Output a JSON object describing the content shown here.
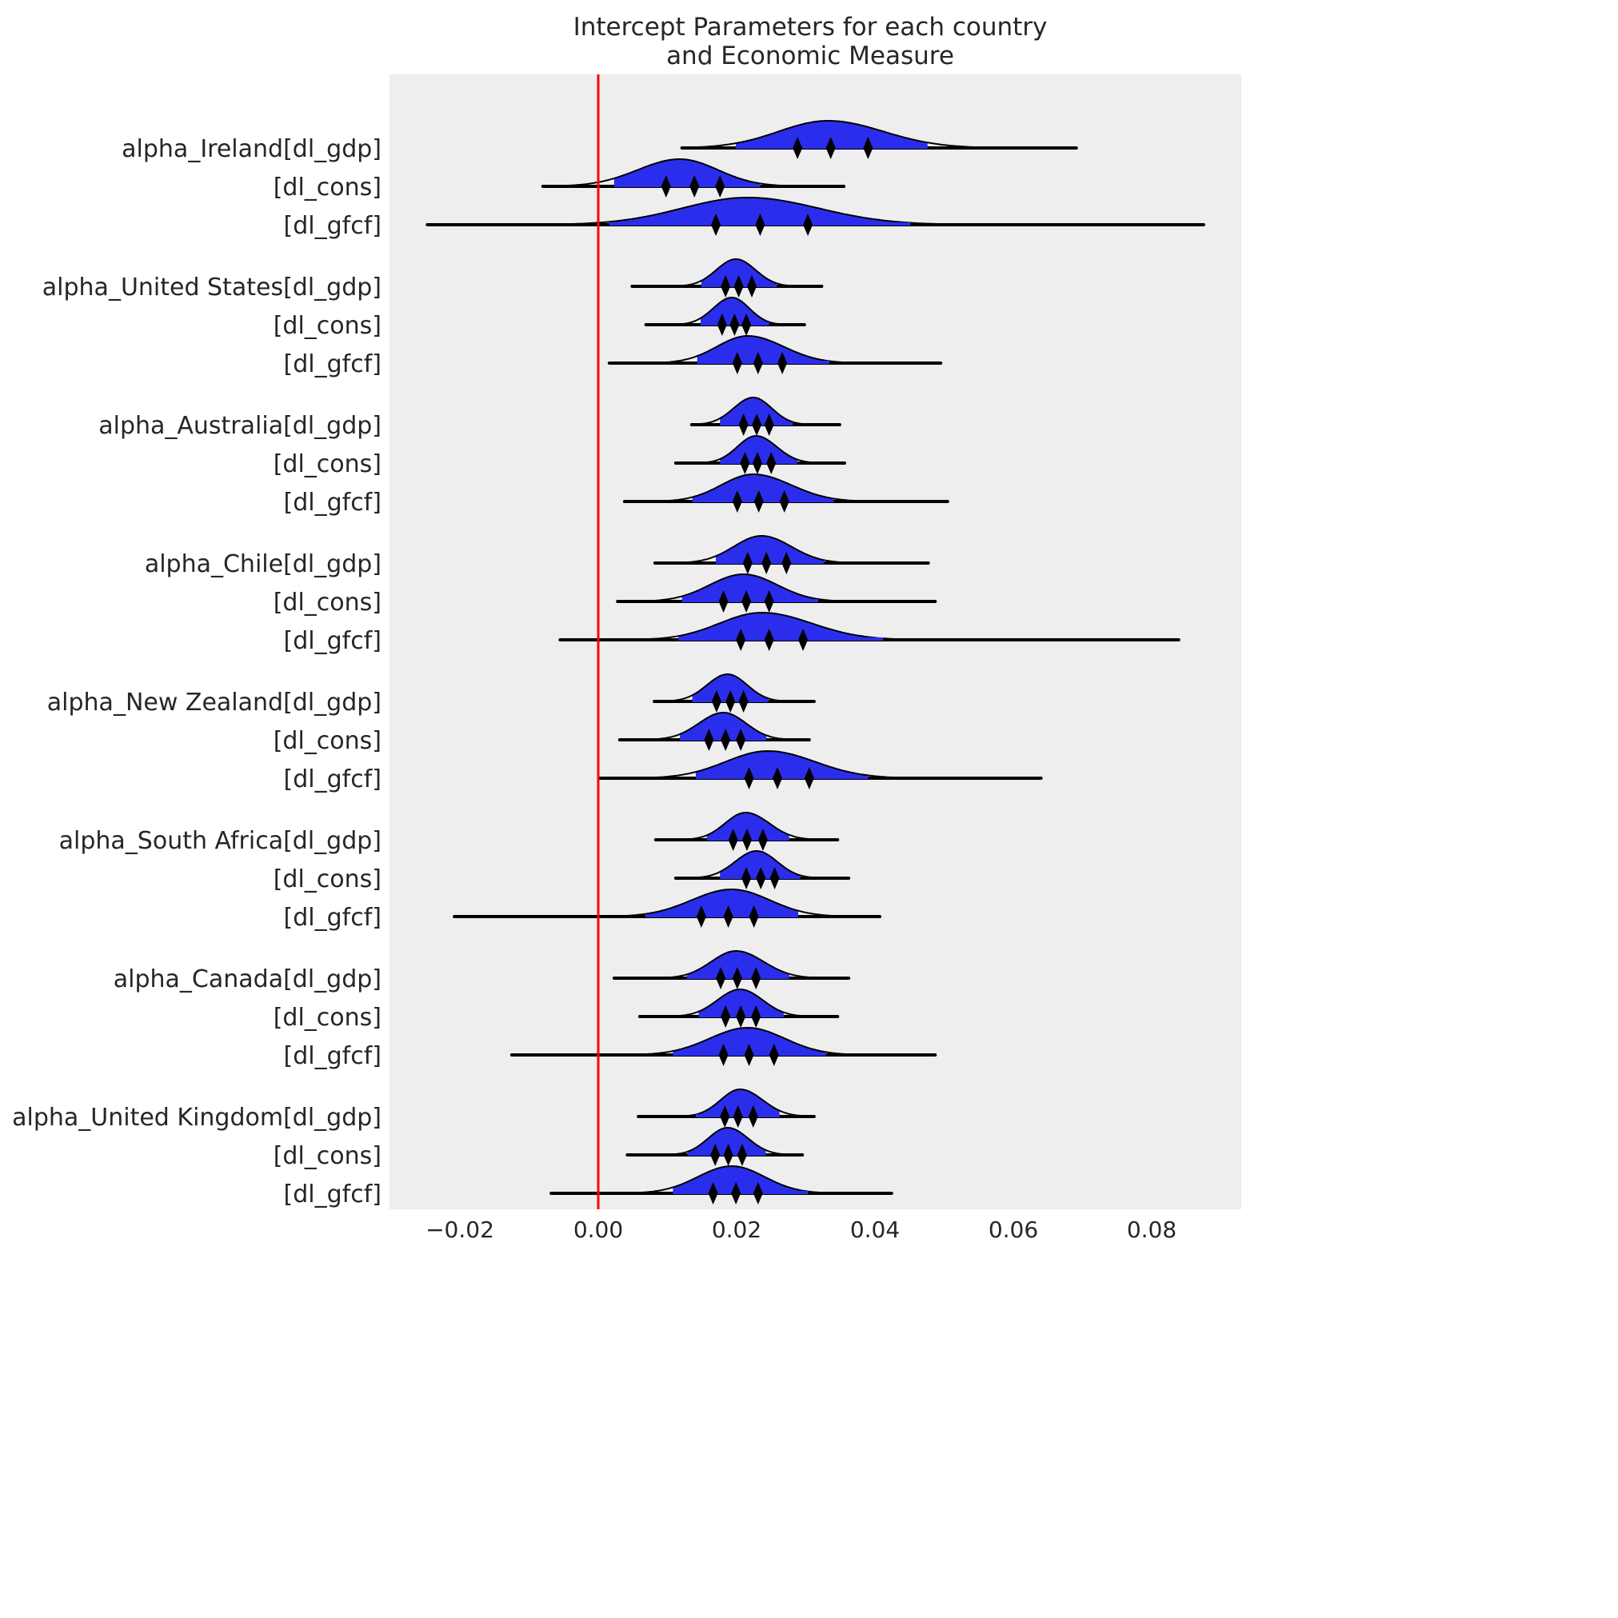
{
  "chart_data": {
    "type": "ridgeline",
    "title": "Intercept Parameters for each country\nand Economic Measure",
    "title_lines": [
      "Intercept Parameters for each country",
      "and Economic Measure"
    ],
    "xlim": [
      -0.031,
      0.092
    ],
    "xticks": [
      -0.02,
      0.0,
      0.02,
      0.04,
      0.06,
      0.08
    ],
    "xtick_labels": [
      "−0.02",
      "0.00",
      "0.02",
      "0.04",
      "0.06",
      "0.08"
    ],
    "reference_line": {
      "x": 0.0,
      "color": "#ff0000"
    },
    "grid": false,
    "colors": {
      "fill": "#2a2eec",
      "outline": "#000000",
      "background": "#eeeeee"
    },
    "rows": [
      {
        "label": "alpha_Ireland[dl_gdp]",
        "min": 0.0121,
        "max": 0.0691,
        "hdi": [
          0.0199,
          0.0476
        ],
        "quartiles": [
          0.0288,
          0.0336,
          0.039
        ],
        "mode": 0.0332
      },
      {
        "label": "[dl_cons]",
        "min": -0.008,
        "max": 0.0355,
        "hdi": [
          0.0023,
          0.0234
        ],
        "quartiles": [
          0.0098,
          0.0139,
          0.0176
        ],
        "mode": 0.0118
      },
      {
        "label": "[dl_gfcf]",
        "min": -0.0247,
        "max": 0.0875,
        "hdi": [
          0.0016,
          0.0451
        ],
        "quartiles": [
          0.017,
          0.0234,
          0.0303
        ],
        "mode": 0.0216
      },
      {
        "label": "alpha_United States[dl_gdp]",
        "min": 0.0049,
        "max": 0.0323,
        "hdi": [
          0.0149,
          0.0258
        ],
        "quartiles": [
          0.0184,
          0.0203,
          0.0222
        ],
        "mode": 0.0199
      },
      {
        "label": "[dl_cons]",
        "min": 0.0069,
        "max": 0.0298,
        "hdi": [
          0.0148,
          0.0247
        ],
        "quartiles": [
          0.0179,
          0.0197,
          0.0214
        ],
        "mode": 0.0193
      },
      {
        "label": "[dl_gfcf]",
        "min": 0.0016,
        "max": 0.0495,
        "hdi": [
          0.0143,
          0.0334
        ],
        "quartiles": [
          0.0201,
          0.0231,
          0.0266
        ],
        "mode": 0.0216
      },
      {
        "label": "alpha_Australia[dl_gdp]",
        "min": 0.0135,
        "max": 0.0349,
        "hdi": [
          0.0176,
          0.0281
        ],
        "quartiles": [
          0.021,
          0.0229,
          0.0247
        ],
        "mode": 0.0224
      },
      {
        "label": "[dl_cons]",
        "min": 0.0112,
        "max": 0.0356,
        "hdi": [
          0.0176,
          0.0288
        ],
        "quartiles": [
          0.0212,
          0.023,
          0.025
        ],
        "mode": 0.0228
      },
      {
        "label": "[dl_gfcf]",
        "min": 0.0038,
        "max": 0.0505,
        "hdi": [
          0.0136,
          0.034
        ],
        "quartiles": [
          0.0201,
          0.0232,
          0.0269
        ],
        "mode": 0.0224
      },
      {
        "label": "alpha_Chile[dl_gdp]",
        "min": 0.0082,
        "max": 0.0477,
        "hdi": [
          0.017,
          0.0326
        ],
        "quartiles": [
          0.0216,
          0.0243,
          0.0272
        ],
        "mode": 0.0236
      },
      {
        "label": "[dl_cons]",
        "min": 0.0028,
        "max": 0.0487,
        "hdi": [
          0.0121,
          0.0318
        ],
        "quartiles": [
          0.0181,
          0.0214,
          0.0247
        ],
        "mode": 0.021
      },
      {
        "label": "[dl_gfcf]",
        "min": -0.0055,
        "max": 0.0839,
        "hdi": [
          0.0116,
          0.0412
        ],
        "quartiles": [
          0.0206,
          0.0247,
          0.0296
        ],
        "mode": 0.0236
      },
      {
        "label": "alpha_New Zealand[dl_gdp]",
        "min": 0.0081,
        "max": 0.0312,
        "hdi": [
          0.0136,
          0.0246
        ],
        "quartiles": [
          0.0171,
          0.0191,
          0.021
        ],
        "mode": 0.0187
      },
      {
        "label": "[dl_cons]",
        "min": 0.0031,
        "max": 0.0305,
        "hdi": [
          0.0118,
          0.0243
        ],
        "quartiles": [
          0.016,
          0.0184,
          0.0206
        ],
        "mode": 0.0181
      },
      {
        "label": "[dl_gfcf]",
        "min": 0.0002,
        "max": 0.064,
        "hdi": [
          0.0141,
          0.039
        ],
        "quartiles": [
          0.0218,
          0.0259,
          0.0305
        ],
        "mode": 0.0245
      },
      {
        "label": "alpha_South Africa[dl_gdp]",
        "min": 0.0083,
        "max": 0.0346,
        "hdi": [
          0.0157,
          0.0276
        ],
        "quartiles": [
          0.0195,
          0.0215,
          0.0238
        ],
        "mode": 0.0213
      },
      {
        "label": "[dl_cons]",
        "min": 0.0112,
        "max": 0.0362,
        "hdi": [
          0.0176,
          0.0292
        ],
        "quartiles": [
          0.0214,
          0.0235,
          0.0255
        ],
        "mode": 0.0229
      },
      {
        "label": "[dl_gfcf]",
        "min": -0.0208,
        "max": 0.0407,
        "hdi": [
          0.0068,
          0.0289
        ],
        "quartiles": [
          0.0149,
          0.0188,
          0.0225
        ],
        "mode": 0.0193
      },
      {
        "label": "alpha_Canada[dl_gdp]",
        "min": 0.0023,
        "max": 0.0362,
        "hdi": [
          0.0128,
          0.0276
        ],
        "quartiles": [
          0.0177,
          0.0201,
          0.0228
        ],
        "mode": 0.0199
      },
      {
        "label": "[dl_cons]",
        "min": 0.006,
        "max": 0.0346,
        "hdi": [
          0.0145,
          0.0268
        ],
        "quartiles": [
          0.0184,
          0.0206,
          0.0228
        ],
        "mode": 0.0205
      },
      {
        "label": "[dl_gfcf]",
        "min": -0.0125,
        "max": 0.0487,
        "hdi": [
          0.0108,
          0.0329
        ],
        "quartiles": [
          0.0181,
          0.0218,
          0.0254
        ],
        "mode": 0.0216
      },
      {
        "label": "alpha_United Kingdom[dl_gdp]",
        "min": 0.0058,
        "max": 0.0312,
        "hdi": [
          0.0141,
          0.0262
        ],
        "quartiles": [
          0.0183,
          0.0202,
          0.0224
        ],
        "mode": 0.0205
      },
      {
        "label": "[dl_cons]",
        "min": 0.0042,
        "max": 0.0295,
        "hdi": [
          0.0129,
          0.0242
        ],
        "quartiles": [
          0.0169,
          0.0188,
          0.0208
        ],
        "mode": 0.0187
      },
      {
        "label": "[dl_gfcf]",
        "min": -0.0068,
        "max": 0.0424,
        "hdi": [
          0.0108,
          0.0303
        ],
        "quartiles": [
          0.0166,
          0.0199,
          0.0231
        ],
        "mode": 0.0193
      }
    ]
  }
}
